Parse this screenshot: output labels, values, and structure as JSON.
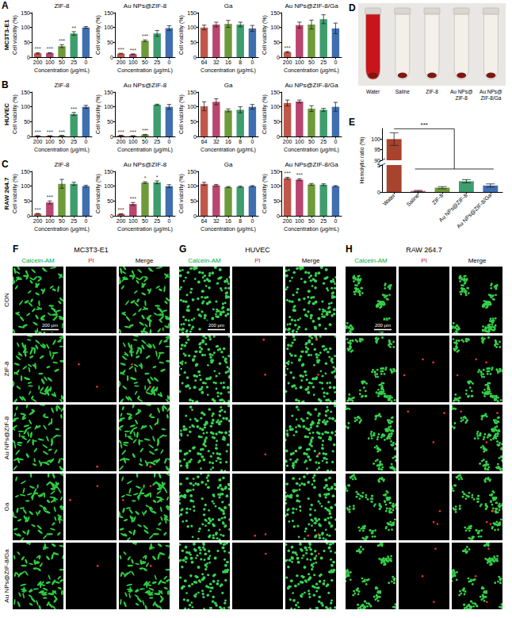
{
  "chart_data": [
    {
      "type": "bar",
      "group": "MC3T3-E1",
      "panel": "A",
      "title": "ZIF-8",
      "xlabel": "Concentration (μg/mL)",
      "ylabel": "Cell viability (%)",
      "categories": [
        200,
        100,
        50,
        25,
        0
      ],
      "values": [
        13,
        14,
        37,
        80,
        100
      ],
      "errors": [
        2,
        1,
        5,
        6,
        3
      ],
      "significance": [
        "***",
        "***",
        "***",
        "**",
        null
      ],
      "colors": [
        "#c0574a",
        "#b8466e",
        "#6e9b3a",
        "#3e9e6e",
        "#3f6fb0"
      ],
      "ylim": [
        0,
        150
      ],
      "yticks": [
        0,
        50,
        100,
        150
      ],
      "grid": false
    },
    {
      "type": "bar",
      "group": "MC3T3-E1",
      "title": "Au NPs@ZIF-8",
      "xlabel": "Concentration (μg/mL)",
      "ylabel": "Cell viability (%)",
      "categories": [
        200,
        100,
        50,
        25,
        0
      ],
      "values": [
        12,
        10,
        55,
        80,
        98
      ],
      "errors": [
        1,
        1,
        3,
        10,
        8
      ],
      "significance": [
        "***",
        "***",
        "***",
        null,
        null
      ],
      "colors": [
        "#c0574a",
        "#b8466e",
        "#6e9b3a",
        "#3e9e6e",
        "#3f6fb0"
      ],
      "ylim": [
        0,
        150
      ],
      "yticks": [
        0,
        50,
        100,
        150
      ],
      "grid": false
    },
    {
      "type": "bar",
      "group": "MC3T3-E1",
      "title": "Ga",
      "xlabel": "Concentration (μg/mL)",
      "ylabel": "Cell viability (%)",
      "categories": [
        64,
        32,
        16,
        8,
        0
      ],
      "values": [
        100,
        110,
        112,
        110,
        97
      ],
      "errors": [
        8,
        8,
        12,
        8,
        10
      ],
      "colors": [
        "#c0574a",
        "#b8466e",
        "#6e9b3a",
        "#3e9e6e",
        "#3f6fb0"
      ],
      "ylim": [
        0,
        150
      ],
      "yticks": [
        0,
        50,
        100,
        150
      ],
      "grid": false
    },
    {
      "type": "bar",
      "group": "MC3T3-E1",
      "title": "Au NPs@ZIF-8/Ga",
      "xlabel": "Concentration (μg/mL)",
      "ylabel": "Cell viability (%)",
      "categories": [
        200,
        100,
        50,
        25,
        0
      ],
      "values": [
        17,
        108,
        110,
        128,
        97
      ],
      "errors": [
        2,
        10,
        15,
        15,
        18
      ],
      "significance": [
        "***",
        null,
        null,
        null,
        null
      ],
      "colors": [
        "#c0574a",
        "#b8466e",
        "#6e9b3a",
        "#3e9e6e",
        "#3f6fb0"
      ],
      "ylim": [
        0,
        150
      ],
      "yticks": [
        0,
        50,
        100,
        150
      ],
      "grid": false
    },
    {
      "type": "bar",
      "group": "HUVEC",
      "panel": "B",
      "title": "ZIF-8",
      "xlabel": "Concentration (μg/mL)",
      "ylabel": "Cell viability (%)",
      "categories": [
        200,
        100,
        50,
        25,
        0
      ],
      "values": [
        2,
        2,
        3,
        76,
        100
      ],
      "errors": [
        0.5,
        0.5,
        0.5,
        5,
        5
      ],
      "significance": [
        "***",
        "***",
        "***",
        "***",
        null
      ],
      "colors": [
        "#c0574a",
        "#b8466e",
        "#6e9b3a",
        "#3e9e6e",
        "#3f6fb0"
      ],
      "ylim": [
        0,
        150
      ],
      "yticks": [
        0,
        50,
        100,
        150
      ],
      "grid": false
    },
    {
      "type": "bar",
      "group": "HUVEC",
      "title": "Au NPs@ZIF-8",
      "xlabel": "Concentration (μg/mL)",
      "ylabel": "Cell viability (%)",
      "categories": [
        200,
        100,
        50,
        25,
        0
      ],
      "values": [
        3,
        2,
        6,
        107,
        100
      ],
      "errors": [
        1,
        0.5,
        1,
        2,
        8
      ],
      "significance": [
        "***",
        "***",
        "***",
        null,
        null
      ],
      "colors": [
        "#c0574a",
        "#b8466e",
        "#6e9b3a",
        "#3e9e6e",
        "#3f6fb0"
      ],
      "ylim": [
        0,
        150
      ],
      "yticks": [
        0,
        50,
        100,
        150
      ],
      "grid": false
    },
    {
      "type": "bar",
      "group": "HUVEC",
      "title": "Ga",
      "xlabel": "Concentration (μg/mL)",
      "ylabel": "Cell viability (%)",
      "categories": [
        64,
        32,
        16,
        8,
        0
      ],
      "values": [
        102,
        117,
        88,
        90,
        100
      ],
      "errors": [
        15,
        10,
        5,
        10,
        8
      ],
      "colors": [
        "#c0574a",
        "#b8466e",
        "#6e9b3a",
        "#3e9e6e",
        "#3f6fb0"
      ],
      "ylim": [
        0,
        150
      ],
      "yticks": [
        0,
        50,
        100,
        150
      ],
      "grid": false
    },
    {
      "type": "bar",
      "group": "HUVEC",
      "title": "Au NPs@ZIF-8/Ga",
      "xlabel": "Concentration (μg/mL)",
      "ylabel": "Cell viability (%)",
      "categories": [
        200,
        100,
        50,
        25,
        0
      ],
      "values": [
        113,
        118,
        94,
        90,
        100
      ],
      "errors": [
        10,
        5,
        10,
        5,
        15
      ],
      "colors": [
        "#c0574a",
        "#b8466e",
        "#6e9b3a",
        "#3e9e6e",
        "#3f6fb0"
      ],
      "ylim": [
        0,
        150
      ],
      "yticks": [
        0,
        50,
        100,
        150
      ],
      "grid": false
    },
    {
      "type": "bar",
      "group": "RAW 264.7",
      "panel": "C",
      "title": "ZIF-8",
      "xlabel": "Concentration (μg/mL)",
      "ylabel": "Cell viability (%)",
      "categories": [
        200,
        100,
        50,
        25,
        0
      ],
      "values": [
        7,
        45,
        108,
        108,
        100
      ],
      "errors": [
        1,
        5,
        15,
        5,
        3
      ],
      "significance": [
        "***",
        "***",
        null,
        null,
        null
      ],
      "colors": [
        "#c0574a",
        "#b8466e",
        "#6e9b3a",
        "#3e9e6e",
        "#3f6fb0"
      ],
      "ylim": [
        0,
        150
      ],
      "yticks": [
        0,
        50,
        100,
        150
      ],
      "grid": false
    },
    {
      "type": "bar",
      "group": "RAW 264.7",
      "title": "Au NPs@ZIF-8",
      "xlabel": "Concentration (μg/mL)",
      "ylabel": "Cell viability (%)",
      "categories": [
        200,
        100,
        50,
        25,
        0
      ],
      "values": [
        6,
        40,
        112,
        113,
        100
      ],
      "errors": [
        1,
        5,
        3,
        5,
        5
      ],
      "significance": [
        "***",
        "***",
        "*",
        "*",
        null
      ],
      "colors": [
        "#c0574a",
        "#b8466e",
        "#6e9b3a",
        "#3e9e6e",
        "#3f6fb0"
      ],
      "ylim": [
        0,
        150
      ],
      "yticks": [
        0,
        50,
        100,
        150
      ],
      "grid": false
    },
    {
      "type": "bar",
      "group": "RAW 264.7",
      "title": "Ga",
      "xlabel": "Concentration (μg/mL)",
      "ylabel": "Cell viability (%)",
      "categories": [
        64,
        32,
        16,
        8,
        0
      ],
      "values": [
        108,
        103,
        97,
        98,
        100
      ],
      "errors": [
        5,
        3,
        2,
        2,
        2
      ],
      "colors": [
        "#c0574a",
        "#b8466e",
        "#6e9b3a",
        "#3e9e6e",
        "#3f6fb0"
      ],
      "ylim": [
        0,
        150
      ],
      "yticks": [
        0,
        50,
        100,
        150
      ],
      "grid": false
    },
    {
      "type": "bar",
      "group": "RAW 264.7",
      "title": "Au NPs@ZIF-8/Ga",
      "xlabel": "Concentration (μg/mL)",
      "ylabel": "Cell viability (%)",
      "categories": [
        200,
        100,
        50,
        25,
        0
      ],
      "values": [
        127,
        122,
        106,
        105,
        100
      ],
      "errors": [
        3,
        3,
        3,
        3,
        2
      ],
      "significance": [
        "***",
        "***",
        null,
        null,
        null
      ],
      "colors": [
        "#c0574a",
        "#b8466e",
        "#6e9b3a",
        "#3e9e6e",
        "#3f6fb0"
      ],
      "ylim": [
        0,
        150
      ],
      "yticks": [
        0,
        50,
        100,
        150
      ],
      "grid": false
    },
    {
      "type": "bar",
      "panel": "E",
      "ylabel": "Hemolytic ratio (%)",
      "categories": [
        "Water",
        "Saline",
        "ZIF-8",
        "Au NPs@ZIF-8",
        "Au NPs@ZIF-8/Ga"
      ],
      "values": [
        100,
        0.2,
        0.8,
        2.0,
        1.2
      ],
      "errors": [
        3,
        0.1,
        0.2,
        0.3,
        0.3
      ],
      "colors": [
        "#a8432e",
        "#c45a7c",
        "#6e9b3a",
        "#3e9e6e",
        "#3f6fb0"
      ],
      "ylim": [
        0,
        105
      ],
      "yticks": [
        0,
        5,
        90,
        95,
        100
      ],
      "ybreak": [
        5,
        90
      ],
      "bracket": {
        "label": "***",
        "from": "Water",
        "to": [
          "Saline",
          "ZIF-8",
          "Au NPs@ZIF-8",
          "Au NPs@ZIF-8/Ga"
        ]
      },
      "grid": false
    }
  ],
  "photo": {
    "panel": "D",
    "labels": [
      "Water",
      "Saline",
      "ZIF-8",
      "Au NPs@ZIF-8",
      "Au NPs@ZIF-8/Ga"
    ],
    "colors": [
      "#c8151b",
      "#f3efe9",
      "#f3efe9",
      "#f3efe9",
      "#f3efe9"
    ]
  },
  "micrographs": {
    "panels": [
      {
        "panel": "F",
        "title": "MC3T3-E1"
      },
      {
        "panel": "G",
        "title": "HUVEC"
      },
      {
        "panel": "H",
        "title": "RAW 264.7"
      }
    ],
    "columns": [
      {
        "name": "Calcein-AM",
        "color": "#00a844"
      },
      {
        "name": "PI",
        "color": "#e0141b"
      },
      {
        "name": "Merge",
        "color": "#000000"
      }
    ],
    "rows": [
      "CON",
      "ZIF-8",
      "Au NPs@ZIF-8",
      "Ga",
      "Au NPs@ZIF-8/Ga"
    ],
    "scale_bar": "200 μm"
  }
}
